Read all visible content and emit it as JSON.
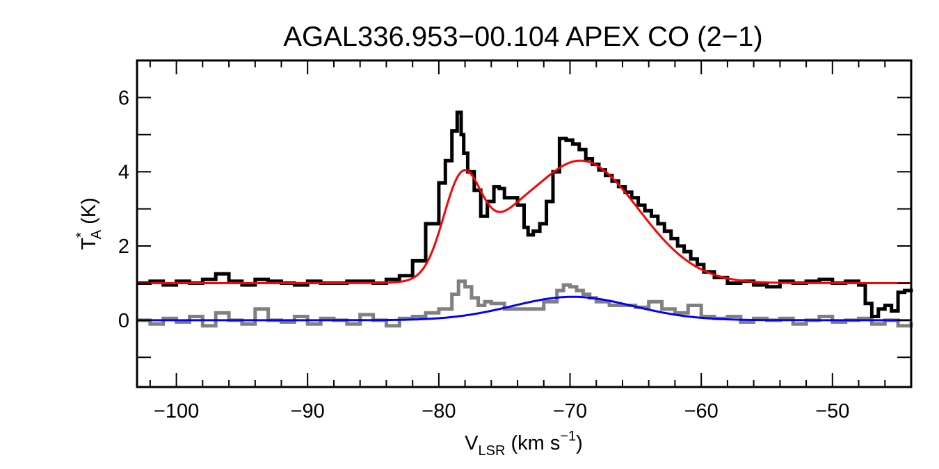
{
  "chart_data": {
    "type": "line",
    "title": "AGAL336.953−00.104  APEX CO (2−1)",
    "xlabel": {
      "main": "V",
      "sub": "LSR",
      "rest": " (km s",
      "sup": "−1",
      "end": ")"
    },
    "ylabel": {
      "main": "T",
      "sup": "*",
      "sub": "A",
      "rest": " (K)"
    },
    "xlim": [
      -103,
      -44
    ],
    "ylim": [
      -1.8,
      7
    ],
    "x_ticks": [
      -100,
      -90,
      -80,
      -70,
      -60,
      -50
    ],
    "x_tick_labels": [
      "−100",
      "−90",
      "−80",
      "−70",
      "−60",
      "−50"
    ],
    "y_ticks": [
      0,
      2,
      4,
      6
    ],
    "y_tick_labels": [
      "0",
      "2",
      "4",
      "6"
    ],
    "grid": false,
    "colors": {
      "observed": "#000000",
      "residual": "#808080",
      "fit": "#ff0000",
      "component": "#0000ff"
    },
    "series": [
      {
        "style": "histogram",
        "color": "#000000",
        "x": [
          -103,
          -102,
          -101,
          -100,
          -99,
          -98,
          -97,
          -96,
          -95,
          -94,
          -93,
          -92,
          -91,
          -90,
          -89,
          -88,
          -87,
          -86,
          -85,
          -84,
          -83,
          -82,
          -81,
          -80,
          -79.5,
          -79,
          -78.6,
          -78.3,
          -78.1,
          -77.8,
          -77.3,
          -76.8,
          -76.3,
          -75.8,
          -75.4,
          -75,
          -74.5,
          -74,
          -73.5,
          -73.2,
          -72.8,
          -72.3,
          -71.8,
          -71.3,
          -70.8,
          -70.3,
          -69.8,
          -69.3,
          -68.8,
          -68.3,
          -67.8,
          -67.3,
          -66.8,
          -66.3,
          -65.8,
          -65.3,
          -64.8,
          -64.3,
          -63.8,
          -63.3,
          -62.8,
          -62.3,
          -61.8,
          -61.3,
          -60.8,
          -60.3,
          -59.8,
          -59,
          -58,
          -57,
          -56,
          -55,
          -54,
          -53,
          -52,
          -51,
          -50,
          -49,
          -48,
          -47.5,
          -47,
          -46.5,
          -46,
          -45.5,
          -45,
          -44.5,
          -44
        ],
        "values": [
          1.0,
          1.05,
          0.95,
          1.05,
          1.0,
          1.1,
          1.25,
          1.05,
          0.95,
          1.1,
          1.05,
          1.0,
          0.95,
          1.05,
          1.0,
          1.0,
          1.05,
          1.05,
          1.0,
          1.1,
          1.2,
          1.6,
          2.6,
          3.7,
          4.3,
          5.1,
          5.6,
          5.0,
          4.5,
          4.0,
          3.5,
          2.8,
          3.2,
          3.6,
          3.55,
          3.3,
          3.3,
          3.1,
          2.5,
          2.3,
          2.4,
          2.6,
          3.2,
          4.0,
          4.9,
          4.85,
          4.75,
          4.6,
          4.35,
          4.2,
          4.05,
          3.9,
          3.75,
          3.6,
          3.45,
          3.3,
          3.1,
          2.95,
          2.8,
          2.6,
          2.4,
          2.2,
          2.0,
          1.85,
          1.65,
          1.5,
          1.3,
          1.15,
          1.0,
          1.05,
          0.95,
          0.9,
          1.05,
          1.0,
          1.05,
          1.1,
          1.0,
          1.05,
          0.95,
          0.45,
          0.1,
          0.3,
          0.4,
          0.25,
          0.75,
          0.8,
          0.75
        ]
      },
      {
        "style": "histogram",
        "color": "#808080",
        "x": [
          -103,
          -102,
          -101,
          -100,
          -99,
          -98,
          -97,
          -96,
          -95,
          -94,
          -93,
          -92,
          -91,
          -90,
          -89,
          -88,
          -87,
          -86,
          -85,
          -84,
          -83,
          -82,
          -81,
          -80,
          -79,
          -78.5,
          -78,
          -77.5,
          -77,
          -76.5,
          -76,
          -75,
          -74,
          -73,
          -72,
          -71,
          -70.5,
          -70,
          -69.5,
          -69,
          -68.5,
          -68,
          -67,
          -66,
          -65,
          -64,
          -63,
          -62,
          -61,
          -60,
          -59,
          -58,
          -57,
          -56,
          -55,
          -54,
          -53,
          -52,
          -51,
          -50,
          -49,
          -48,
          -47,
          -46,
          -45,
          -44
        ],
        "values": [
          0.0,
          -0.1,
          0.05,
          -0.05,
          0.1,
          -0.15,
          0.2,
          0.0,
          -0.1,
          0.3,
          0.0,
          -0.05,
          0.1,
          -0.1,
          0.05,
          0.0,
          -0.1,
          0.15,
          0.0,
          -0.15,
          0.05,
          0.1,
          0.2,
          0.3,
          0.7,
          1.05,
          0.9,
          0.6,
          0.4,
          0.5,
          0.45,
          0.3,
          0.3,
          0.3,
          0.5,
          0.8,
          0.95,
          0.9,
          0.8,
          0.7,
          0.6,
          0.5,
          0.4,
          0.4,
          0.35,
          0.5,
          0.3,
          0.2,
          0.4,
          0.1,
          0.05,
          0.1,
          -0.05,
          0.05,
          0.0,
          0.05,
          -0.1,
          0.0,
          0.1,
          -0.05,
          0.0,
          0.05,
          -0.1,
          0.0,
          -0.15,
          -0.05
        ]
      },
      {
        "style": "gaussian-sum",
        "color": "#ff0000",
        "baseline": 1.0,
        "components": [
          {
            "amp": 2.6,
            "center": -78.2,
            "sigma": 1.45
          },
          {
            "amp": 3.3,
            "center": -69.2,
            "sigma": 4.4
          },
          {
            "amp": 0.35,
            "center": -74.5,
            "sigma": 1.5
          }
        ]
      },
      {
        "style": "gaussian-sum",
        "color": "#0000ff",
        "baseline": 0.0,
        "components": [
          {
            "amp": 0.63,
            "center": -69.8,
            "sigma": 4.6
          }
        ]
      }
    ]
  }
}
